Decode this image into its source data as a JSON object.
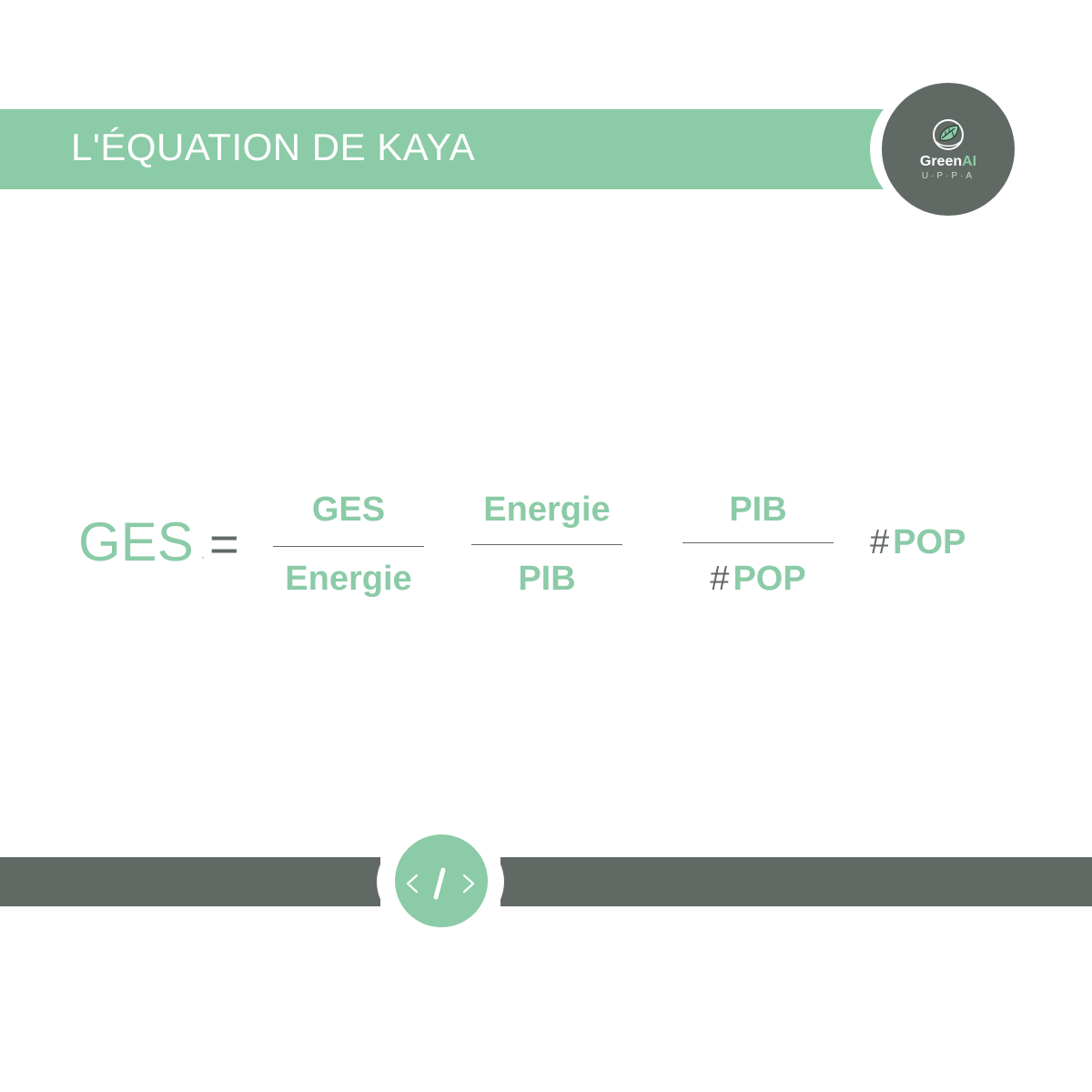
{
  "header": {
    "title": "L'ÉQUATION DE KAYA"
  },
  "logo": {
    "name_part1": "Green",
    "name_part2": "AI",
    "subtitle": "U·P·P·A",
    "icon": "leaf-globe-icon"
  },
  "equation": {
    "lhs": "GES",
    "equals": "=",
    "fraction1": {
      "numerator": "GES",
      "denominator": "Energie"
    },
    "fraction2": {
      "numerator": "Energie",
      "denominator": "PIB"
    },
    "fraction3": {
      "numerator": "PIB",
      "denominator_hash": "#",
      "denominator": "POP"
    },
    "last_term_hash": "#",
    "last_term": "POP"
  },
  "footer": {
    "icon": "code-icon"
  },
  "colors": {
    "accent_green": "#8bcba7",
    "dark_grey": "#616964",
    "background": "#ffffff"
  }
}
